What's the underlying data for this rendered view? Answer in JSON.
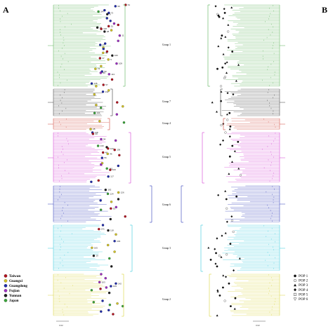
{
  "panels": {
    "left": "A",
    "right": "B"
  },
  "groups": [
    {
      "id": "g1",
      "label": "Group 1",
      "color": "#58b054"
    },
    {
      "id": "g7",
      "label": "Group 7",
      "color": "#3a3a3a"
    },
    {
      "id": "g4",
      "label": "Group 4",
      "color": "#d0463a"
    },
    {
      "id": "g5",
      "label": "Group 5",
      "color": "#d33fd3"
    },
    {
      "id": "g6",
      "label": "Group 6",
      "color": "#2e3ab8"
    },
    {
      "id": "g3",
      "label": "Group 3",
      "color": "#37c9dc"
    },
    {
      "id": "g2",
      "label": "Group 2",
      "color": "#d8d33a"
    }
  ],
  "legend_regions": [
    {
      "label": "Taiwan",
      "color": "#b0121f"
    },
    {
      "label": "Guangxi",
      "color": "#d1c227"
    },
    {
      "label": "Guangdong",
      "color": "#1f2aa8"
    },
    {
      "label": "Fujian",
      "color": "#9b2fbf"
    },
    {
      "label": "Yunnan",
      "color": "#1e1e1e"
    },
    {
      "label": "Japan",
      "color": "#3aa43a"
    }
  ],
  "legend_pops": [
    {
      "label": "POP 1",
      "symbol": "circle-filled"
    },
    {
      "label": "POP 2",
      "symbol": "circle-open"
    },
    {
      "label": "POP 3",
      "symbol": "triangle-filled"
    },
    {
      "label": "POP 4",
      "symbol": "diamond-filled"
    },
    {
      "label": "POP 5",
      "symbol": "square-open"
    },
    {
      "label": "POP 6",
      "symbol": "triangle-down-open"
    }
  ],
  "leaf_labels": [
    "61",
    "99",
    "147",
    "72",
    "9",
    "51",
    "38",
    "118",
    "28",
    "11",
    "27",
    "46",
    "160",
    "37",
    "5",
    "109",
    "74",
    "50",
    "86",
    "113",
    "135",
    "57",
    "132",
    "141",
    "28",
    "148",
    "43",
    "94",
    "130",
    "123",
    "136",
    "40",
    "46",
    "56",
    "161",
    "100",
    "117",
    "162",
    "126",
    "124",
    "91",
    "141",
    "118",
    "103",
    "165",
    "10",
    "103",
    "142",
    "129"
  ],
  "scale_labels": [
    "0.02",
    "0.02"
  ]
}
